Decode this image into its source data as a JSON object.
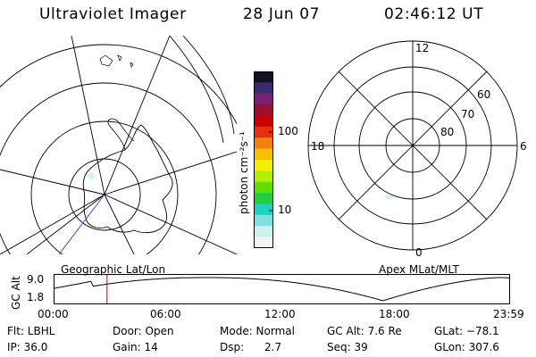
{
  "header": {
    "instrument": "Ultraviolet Imager",
    "date": "28 Jun 07",
    "time": "02:46:12 UT"
  },
  "colorbar": {
    "unit_label": "photon cm⁻²s⁻¹",
    "tick_labels": [
      "100",
      "10"
    ],
    "colors": [
      "#101020",
      "#3a2a70",
      "#7a1e78",
      "#9a1030",
      "#c80000",
      "#e83010",
      "#f08010",
      "#f8c000",
      "#f0f000",
      "#b0f000",
      "#60e000",
      "#20d040",
      "#20d0c0",
      "#80e0e0",
      "#d0f0f0",
      "#f4f4f4"
    ]
  },
  "left_map": {
    "caption": "Geographic Lat/Lon"
  },
  "right_map": {
    "caption": "Apex MLat/MLT",
    "mlt_labels": {
      "top": "12",
      "right": "6",
      "bottom": "0",
      "left": "18"
    },
    "lat_labels": [
      "60",
      "70",
      "80"
    ]
  },
  "altitude_plot": {
    "ylabel": "GC Alt",
    "y_ticks": [
      "9.0",
      "1.8"
    ],
    "x_ticks": [
      "00:00",
      "06:00",
      "12:00",
      "18:00",
      "23:59"
    ],
    "marker_time": "02:46",
    "line_color": "#000000",
    "marker_color": "#c00000"
  },
  "info": {
    "filter": "Flt: LBHL",
    "door": "Door: Open",
    "mode": "Mode: Normal",
    "gc_alt": "GC Alt: 7.6 Re",
    "glat": "GLat: −78.1",
    "ip": "IP: 36.0",
    "gain": "Gain: 14",
    "dsp": "Dsp:      2.7",
    "seq": "Seq: 39",
    "glon": "GLon: 307.6"
  }
}
